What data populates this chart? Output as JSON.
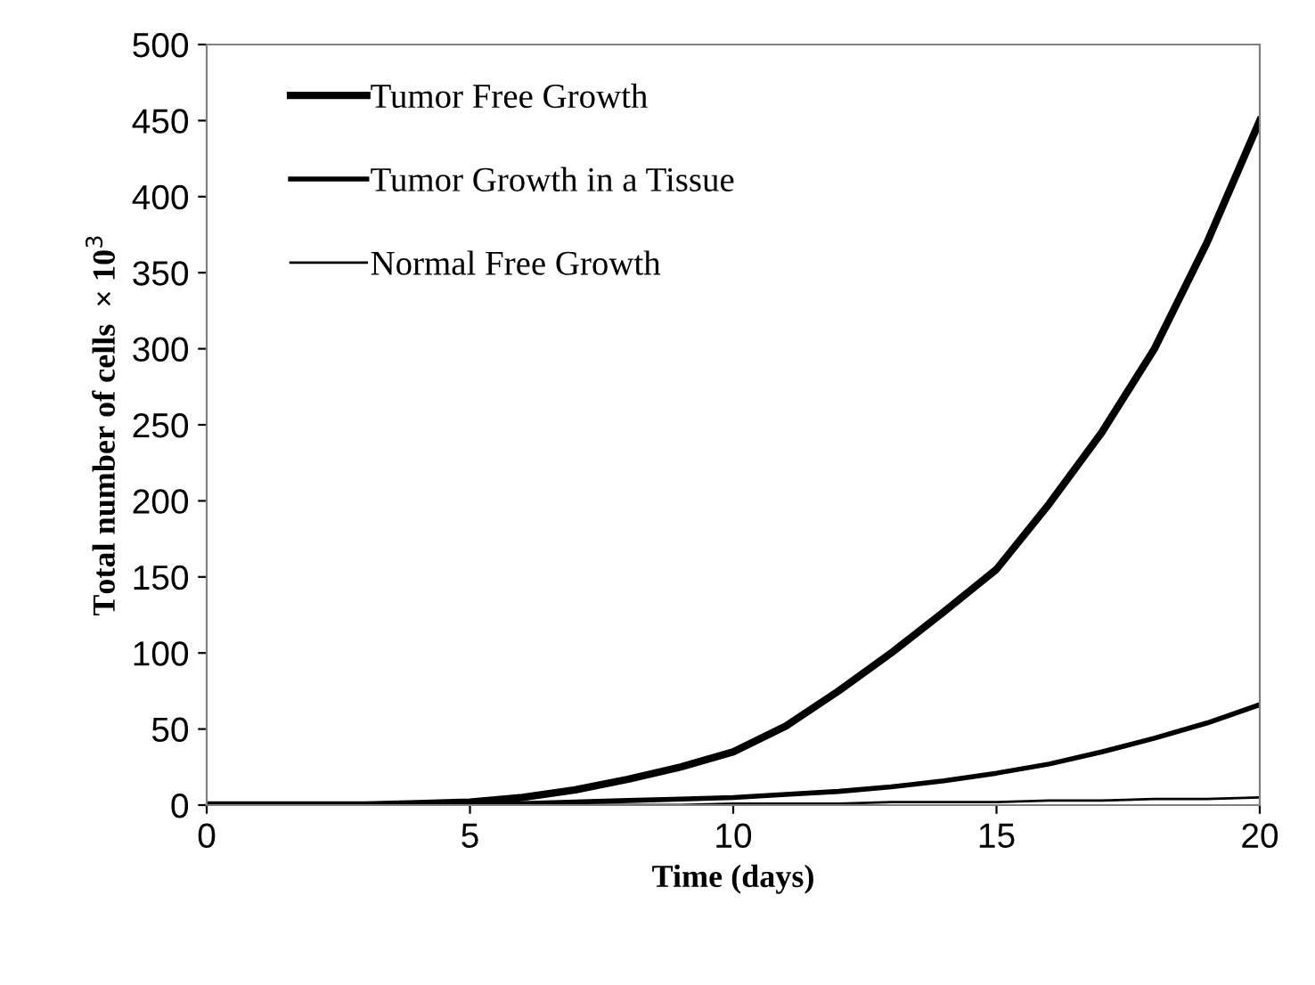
{
  "chart_data": {
    "type": "line",
    "xlabel": "Time (days)",
    "ylabel": "Total number of cells  × 10$^{3}$",
    "x": [
      0,
      1,
      2,
      3,
      4,
      5,
      6,
      7,
      8,
      9,
      10,
      11,
      12,
      13,
      14,
      15,
      16,
      17,
      18,
      19,
      20
    ],
    "series": [
      {
        "name": "Tumor Free Growth",
        "color": "#000000",
        "values": [
          0,
          0,
          0,
          0,
          1,
          2,
          5,
          10,
          17,
          25,
          35,
          52,
          75,
          100,
          127,
          155,
          198,
          245,
          300,
          370,
          450
        ]
      },
      {
        "name": "Tumor Growth in a Tissue",
        "color": "#000000",
        "values": [
          0,
          0,
          0,
          0,
          0,
          1,
          1,
          2,
          3,
          4,
          5,
          7,
          9,
          12,
          16,
          21,
          27,
          35,
          44,
          54,
          66
        ]
      },
      {
        "name": "Normal Free Growth",
        "color": "#000000",
        "values": [
          0,
          0,
          0,
          0,
          0,
          0,
          0,
          0,
          0,
          0,
          1,
          1,
          1,
          2,
          2,
          2,
          3,
          3,
          4,
          4,
          5
        ]
      }
    ],
    "xlim": [
      0,
      20
    ],
    "xticks": [
      0,
      5,
      10,
      15,
      20
    ],
    "ylim": [
      0,
      500
    ],
    "yticks": [
      0,
      50,
      100,
      150,
      200,
      250,
      300,
      350,
      400,
      450,
      500
    ],
    "grid": false,
    "legend": "top left",
    "marker": "none",
    "line_style": "solid"
  }
}
